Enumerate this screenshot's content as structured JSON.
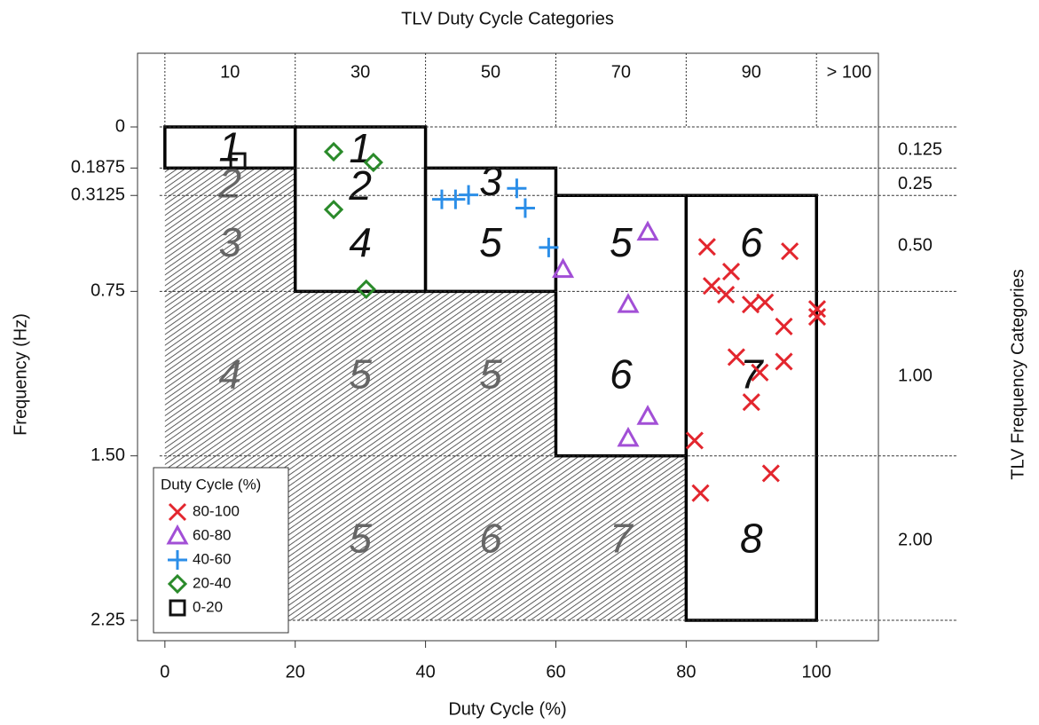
{
  "chart_data": {
    "type": "scatter",
    "title": "TLV Duty Cycle Categories",
    "x_label": "Duty Cycle (%)",
    "y_label": "Frequency (Hz)",
    "y2_label": "TLV Frequency Categories",
    "xlim": [
      -4.2,
      109.5
    ],
    "ylim": [
      2.343,
      -0.336
    ],
    "xticks": [
      0,
      20,
      40,
      60,
      80,
      100
    ],
    "yticks": [
      0,
      0.1875,
      0.3125,
      0.75,
      {
        "value": 1.5,
        "label": "1.50"
      },
      2.25
    ],
    "x2ticks": [
      10,
      30,
      50,
      70,
      90,
      {
        "value": 105,
        "label": "> 100"
      }
    ],
    "x2_bounds": [
      0,
      20,
      40,
      60,
      80,
      100
    ],
    "y2ticks": [
      {
        "value": 0.09375,
        "label": "0.125"
      },
      0.25,
      {
        "value": 0.53125,
        "label": "0.50"
      },
      {
        "value": 1.125,
        "label": "1.00"
      },
      {
        "value": 1.875,
        "label": "2.00"
      }
    ],
    "y2_bounds": [
      0,
      0.1875,
      0.3125,
      0.75,
      1.5,
      2.25
    ],
    "white_zones": [
      {
        "x": [
          0,
          20
        ],
        "y": [
          0,
          0.1875
        ]
      },
      {
        "x": [
          20,
          40
        ],
        "y": [
          0,
          0.75
        ]
      },
      {
        "x": [
          40,
          60
        ],
        "y": [
          0.1875,
          0.75
        ]
      },
      {
        "x": [
          60,
          80
        ],
        "y": [
          0.3125,
          1.5
        ]
      },
      {
        "x": [
          80,
          100
        ],
        "y": [
          0.3125,
          2.25
        ]
      }
    ],
    "hatched_zones": [
      {
        "x": [
          0,
          20
        ],
        "y": [
          0.1875,
          2.25
        ]
      },
      {
        "x": [
          20,
          40
        ],
        "y": [
          0.75,
          2.25
        ]
      },
      {
        "x": [
          40,
          60
        ],
        "y": [
          0.75,
          2.25
        ]
      },
      {
        "x": [
          60,
          80
        ],
        "y": [
          1.5,
          2.25
        ]
      }
    ],
    "zone_labels": [
      {
        "label": "1",
        "x": 10,
        "y": 0.094,
        "hatched": false
      },
      {
        "label": "2",
        "x": 10,
        "y": 0.26,
        "hatched": true
      },
      {
        "label": "3",
        "x": 10,
        "y": 0.53,
        "hatched": true
      },
      {
        "label": "4",
        "x": 10,
        "y": 1.13,
        "hatched": true
      },
      {
        "label": "1",
        "x": 30,
        "y": 0.1,
        "hatched": false
      },
      {
        "label": "2",
        "x": 30,
        "y": 0.27,
        "hatched": false
      },
      {
        "label": "4",
        "x": 30,
        "y": 0.53,
        "hatched": false
      },
      {
        "label": "5",
        "x": 30,
        "y": 1.13,
        "hatched": true
      },
      {
        "label": "5",
        "x": 30,
        "y": 1.88,
        "hatched": true
      },
      {
        "label": "3",
        "x": 50,
        "y": 0.25,
        "hatched": false
      },
      {
        "label": "5",
        "x": 50,
        "y": 0.53,
        "hatched": false
      },
      {
        "label": "5",
        "x": 50,
        "y": 1.13,
        "hatched": true
      },
      {
        "label": "6",
        "x": 50,
        "y": 1.88,
        "hatched": true
      },
      {
        "label": "5",
        "x": 70,
        "y": 0.53,
        "hatched": false
      },
      {
        "label": "6",
        "x": 70,
        "y": 1.13,
        "hatched": false
      },
      {
        "label": "7",
        "x": 70,
        "y": 1.88,
        "hatched": true
      },
      {
        "label": "6",
        "x": 90,
        "y": 0.53,
        "hatched": false
      },
      {
        "label": "7",
        "x": 90,
        "y": 1.13,
        "hatched": false
      },
      {
        "label": "8",
        "x": 90,
        "y": 1.88,
        "hatched": false
      }
    ],
    "legend_title": "Duty Cycle (%)",
    "legend": "lower left",
    "series": [
      {
        "name": "80-100",
        "color": "#e3262e",
        "marker": "x",
        "x": [
          83.2,
          86.9,
          83.9,
          86.1,
          89.9,
          92.1,
          95.9,
          100.1,
          100.1,
          95,
          87.7,
          91.3,
          95,
          90,
          81.3,
          82.2,
          93
        ],
        "values": [
          0.547,
          0.66,
          0.725,
          0.765,
          0.81,
          0.8,
          0.567,
          0.83,
          0.866,
          0.91,
          1.05,
          1.12,
          1.07,
          1.255,
          1.43,
          1.67,
          1.58
        ]
      },
      {
        "name": "60-80",
        "color": "#a24fd6",
        "marker": "triangle",
        "x": [
          74.1,
          61.1,
          71.1,
          74.1,
          71.1
        ],
        "values": [
          0.48,
          0.65,
          0.81,
          1.32,
          1.42
        ]
      },
      {
        "name": "40-60",
        "color": "#2b8ee8",
        "marker": "plus",
        "x": [
          42.5,
          44.6,
          46.6,
          54,
          55.3,
          58.9
        ],
        "values": [
          0.33,
          0.33,
          0.31,
          0.28,
          0.37,
          0.55
        ]
      },
      {
        "name": "20-40",
        "color": "#2a8a2a",
        "marker": "diamond",
        "x": [
          25.9,
          32,
          25.9,
          30.9
        ],
        "values": [
          0.113,
          0.162,
          0.377,
          0.74
        ]
      },
      {
        "name": "0-20",
        "color": "#111111",
        "marker": "square",
        "x": [
          11.2
        ],
        "values": [
          0.154
        ]
      }
    ]
  }
}
